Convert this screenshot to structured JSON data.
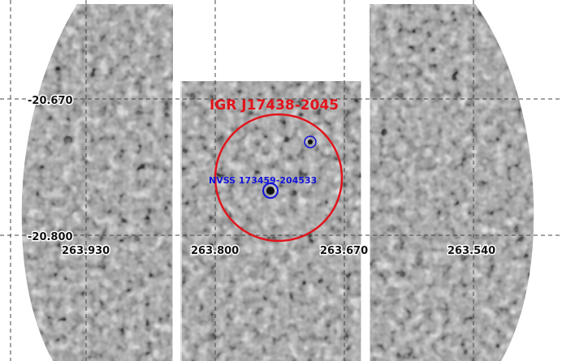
{
  "image": {
    "background_color": "#ffffff",
    "field_color": "#9a9a9a",
    "grid_color": "#444444"
  },
  "grid": {
    "dec_labels": [
      "-20.670",
      "-20.800"
    ],
    "ra_labels": [
      "263.930",
      "263.800",
      "263.670",
      "263.540"
    ]
  },
  "source": {
    "name": "IGR J17438-2045",
    "color": "#e3141b"
  },
  "counterpart": {
    "name": "NVSS 173459-204533",
    "color": "#1414dd"
  }
}
